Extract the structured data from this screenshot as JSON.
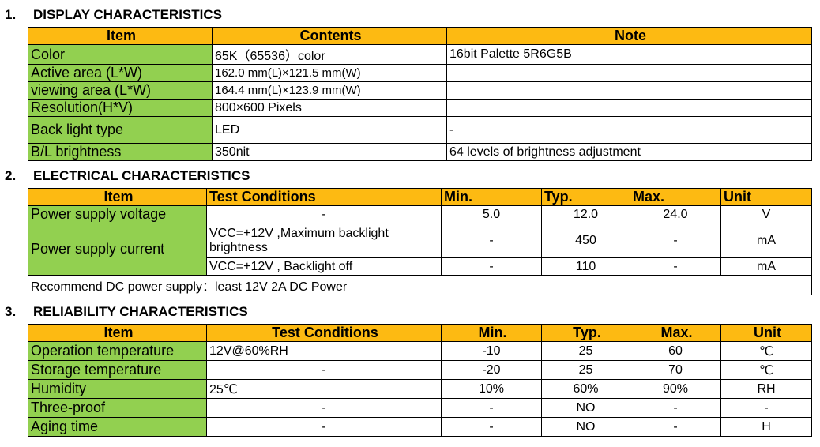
{
  "sections": [
    {
      "number": "1.",
      "title": "DISPLAY CHARACTERISTICS"
    },
    {
      "number": "2.",
      "title": "ELECTRICAL CHARACTERISTICS"
    },
    {
      "number": "3.",
      "title": "RELIABILITY CHARACTERISTICS"
    }
  ],
  "display": {
    "headers": [
      "Item",
      "Contents",
      "Note"
    ],
    "rows": [
      {
        "item": "Color",
        "contents": "65K（65536）color",
        "note": "16bit Palette 5R6G5B"
      },
      {
        "item": "Active area (L*W)",
        "contents": "162.0 mm(L)×121.5 mm(W)",
        "note": ""
      },
      {
        "item": "viewing area (L*W)",
        "contents": "164.4 mm(L)×123.9 mm(W)",
        "note": ""
      },
      {
        "item": "Resolution(H*V)",
        "contents": "800×600 Pixels",
        "note": ""
      },
      {
        "item": "Back light type",
        "contents": "LED",
        "note": "-"
      },
      {
        "item": "B/L brightness",
        "contents": "350nit",
        "note": "64 levels of brightness adjustment"
      }
    ]
  },
  "electrical": {
    "headers": [
      "Item",
      "Test Conditions",
      "Min.",
      "Typ.",
      "Max.",
      "Unit"
    ],
    "voltage": {
      "item": "Power supply voltage",
      "cond": "-",
      "min": "5.0",
      "typ": "12.0",
      "max": "24.0",
      "unit": "V"
    },
    "current": {
      "item": "Power supply current",
      "rows": [
        {
          "cond": "VCC=+12V ,Maximum backlight brightness",
          "min": "-",
          "typ": "450",
          "max": "-",
          "unit": "mA"
        },
        {
          "cond": "VCC=+12V , Backlight off",
          "min": "-",
          "typ": "110",
          "max": "-",
          "unit": "mA"
        }
      ]
    },
    "note": "Recommend DC power supply：least 12V 2A DC Power"
  },
  "reliability": {
    "headers": [
      "Item",
      "Test Conditions",
      "Min.",
      "Typ.",
      "Max.",
      "Unit"
    ],
    "rows": [
      {
        "item": "Operation temperature",
        "cond": "12V@60%RH",
        "min": "-10",
        "typ": "25",
        "max": "60",
        "unit": "℃"
      },
      {
        "item": "Storage temperature",
        "cond": "-",
        "min": "-20",
        "typ": "25",
        "max": "70",
        "unit": "℃"
      },
      {
        "item": "Humidity",
        "cond": "25℃",
        "min": "10%",
        "typ": "60%",
        "max": "90%",
        "unit": "RH"
      },
      {
        "item": "Three-proof",
        "cond": "-",
        "min": "-",
        "typ": "NO",
        "max": "-",
        "unit": "-"
      },
      {
        "item": "Aging time",
        "cond": "-",
        "min": "-",
        "typ": "NO",
        "max": "-",
        "unit": "H"
      }
    ]
  }
}
